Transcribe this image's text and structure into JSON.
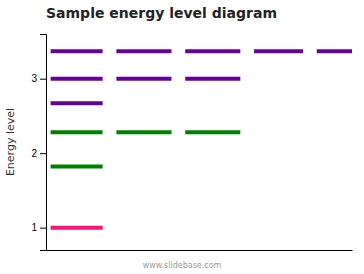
{
  "chart_data": {
    "type": "hlines",
    "title": "Sample energy level diagram",
    "ylabel": "Energy level",
    "annotations": [
      "www.slidebase.com"
    ],
    "xlim": [
      0,
      10
    ],
    "ylim": [
      0.7,
      3.6
    ],
    "yticks": [
      1,
      2,
      3
    ],
    "tick_labels": "y",
    "grid": false,
    "series": [
      {
        "color": "#660099",
        "values": [
          3.37,
          3.37,
          3.37,
          3.37,
          3.37,
          3.0,
          3.0,
          3.0,
          2.67
        ],
        "x_start": [
          0.15,
          2.3,
          4.55,
          6.8,
          8.85,
          0.15,
          2.3,
          4.55,
          0.15
        ],
        "x_end": [
          1.85,
          4.1,
          6.35,
          8.4,
          10.0,
          1.85,
          4.1,
          6.35,
          1.85
        ]
      },
      {
        "color": "#008000",
        "values": [
          2.28,
          2.28,
          2.28,
          1.82
        ],
        "x_start": [
          0.15,
          2.3,
          4.55,
          0.15
        ],
        "x_end": [
          1.85,
          4.1,
          6.35,
          1.85
        ]
      },
      {
        "color": "#FF1177",
        "values": [
          1.0
        ],
        "x_start": [
          0.15
        ],
        "x_end": [
          1.85
        ]
      }
    ]
  }
}
